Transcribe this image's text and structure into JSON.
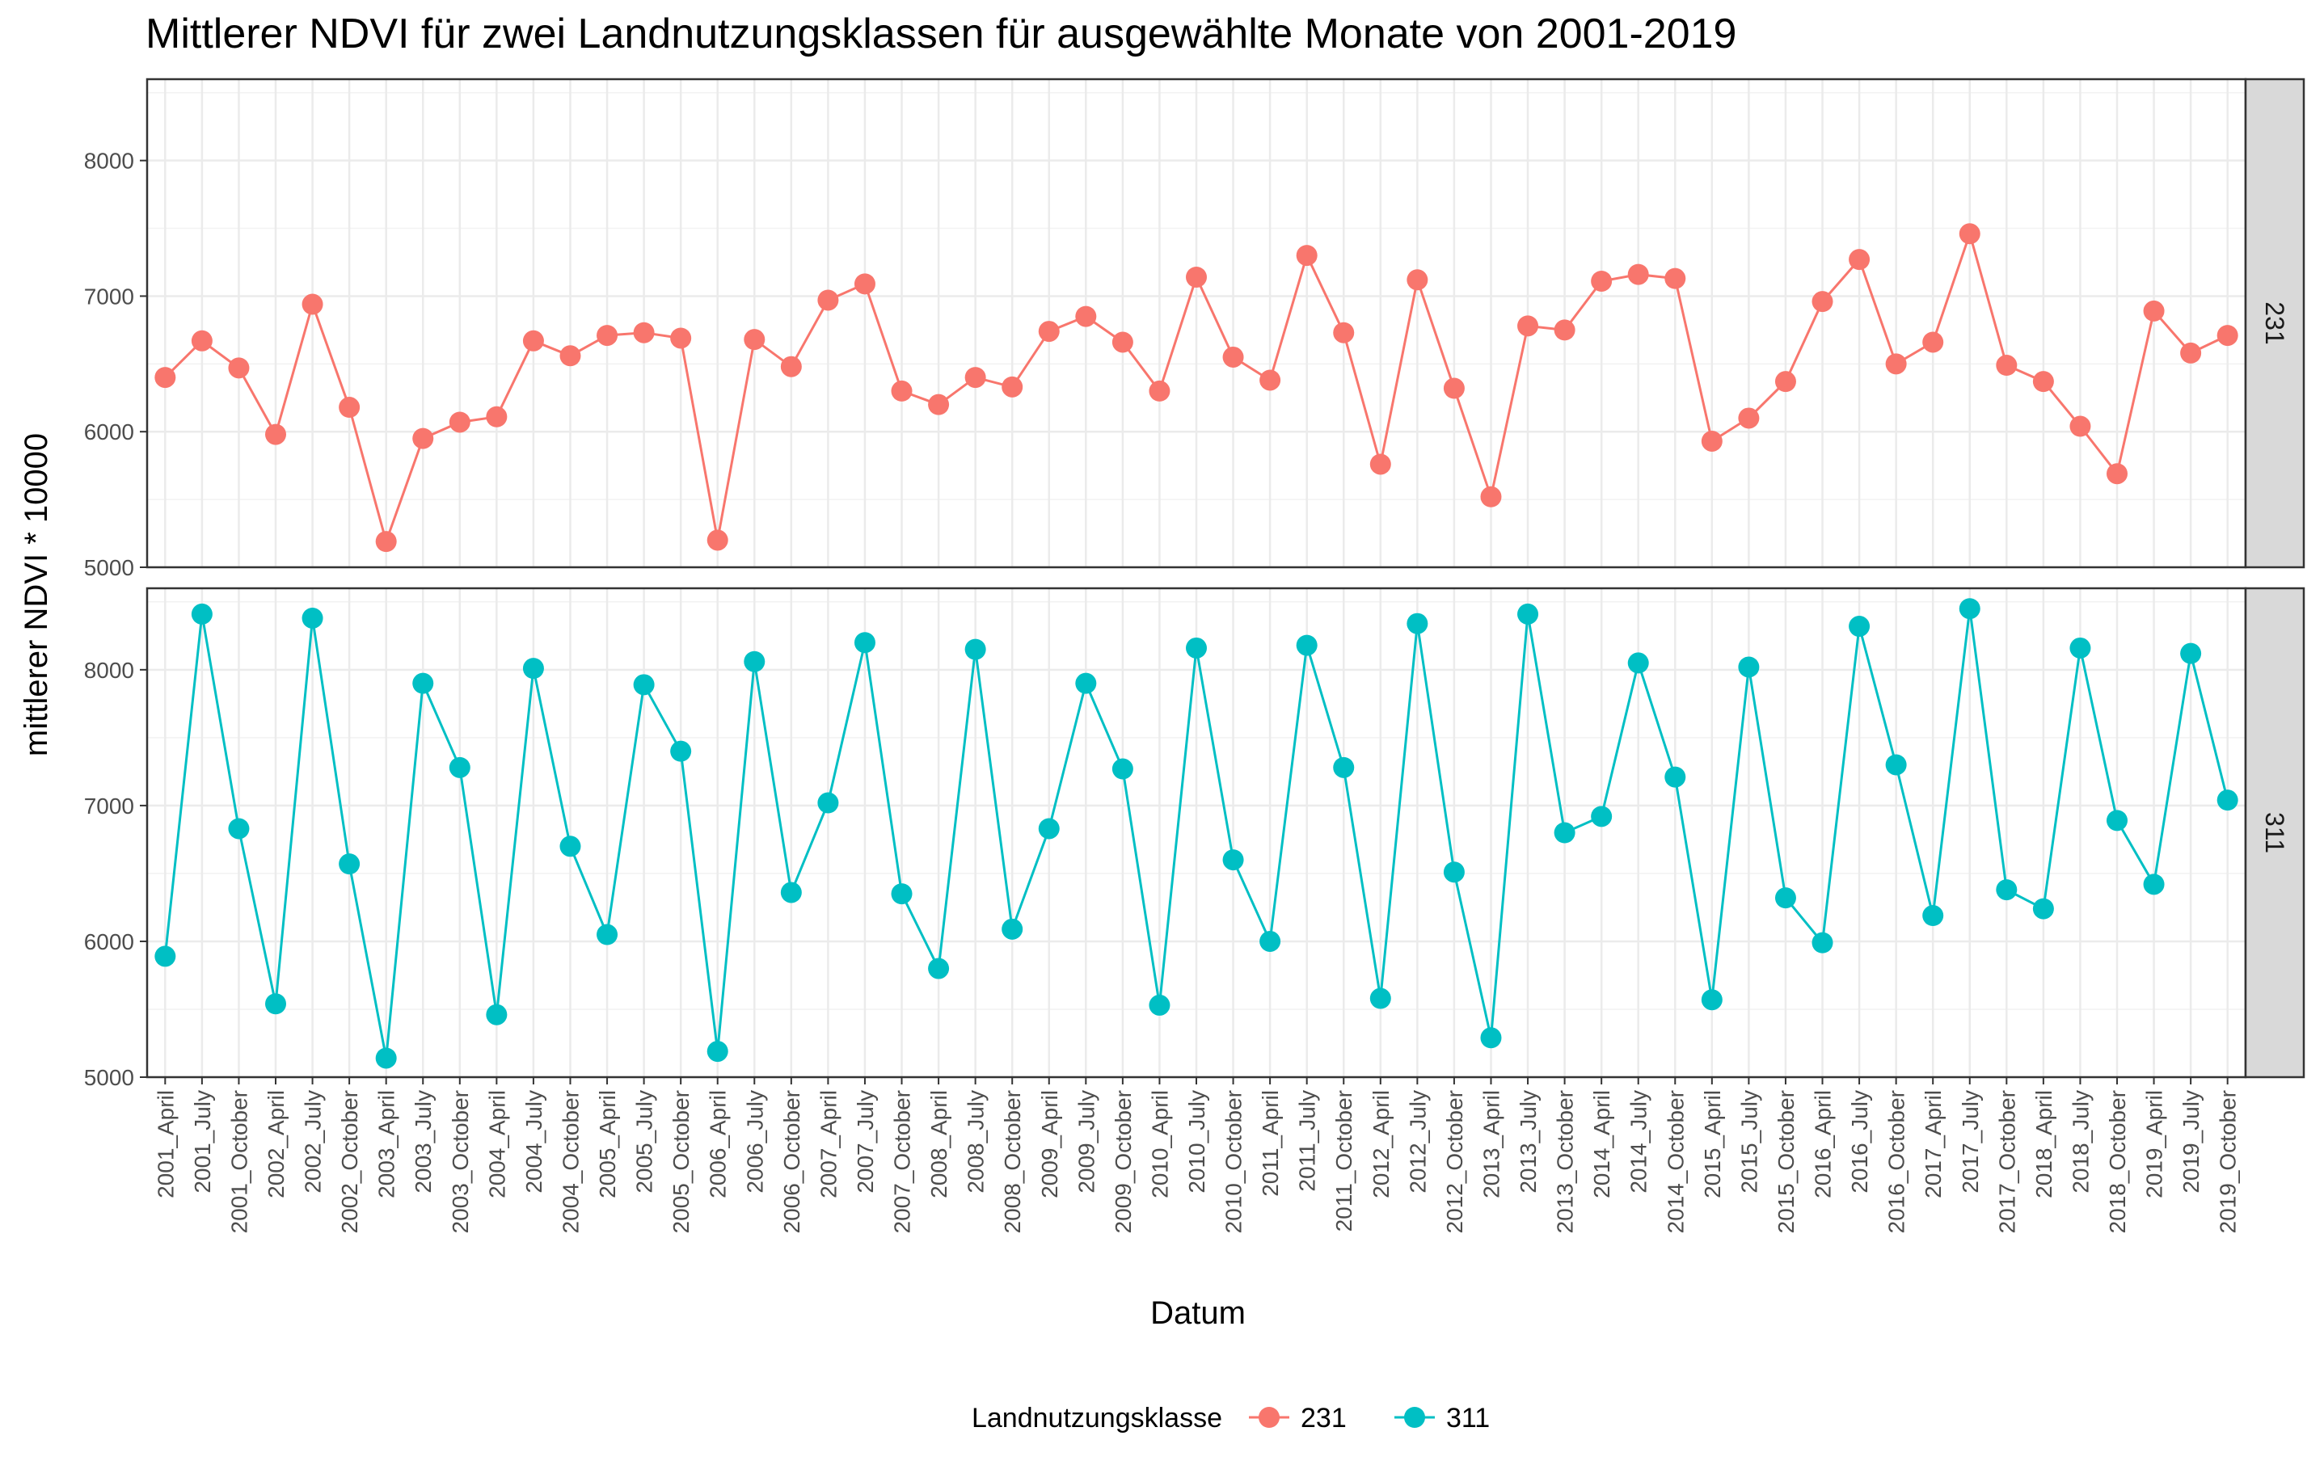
{
  "chart_data": {
    "type": "line",
    "title": "Mittlerer NDVI für zwei Landnutzungsklassen für ausgewählte Monate von 2001-2019",
    "xlabel": "Datum",
    "ylabel": "mittlerer NDVI * 10000",
    "legend": {
      "title": "Landnutzungsklasse",
      "position": "bottom"
    },
    "grid": true,
    "categories": [
      "2001_April",
      "2001_July",
      "2001_October",
      "2002_April",
      "2002_July",
      "2002_October",
      "2003_April",
      "2003_July",
      "2003_October",
      "2004_April",
      "2004_July",
      "2004_October",
      "2005_April",
      "2005_July",
      "2005_October",
      "2006_April",
      "2006_July",
      "2006_October",
      "2007_April",
      "2007_July",
      "2007_October",
      "2008_April",
      "2008_July",
      "2008_October",
      "2009_April",
      "2009_July",
      "2009_October",
      "2010_April",
      "2010_July",
      "2010_October",
      "2011_April",
      "2011_July",
      "2011_October",
      "2012_April",
      "2012_July",
      "2012_October",
      "2013_April",
      "2013_July",
      "2013_October",
      "2014_April",
      "2014_July",
      "2014_October",
      "2015_April",
      "2015_July",
      "2015_October",
      "2016_April",
      "2016_July",
      "2016_October",
      "2017_April",
      "2017_July",
      "2017_October",
      "2018_April",
      "2018_July",
      "2018_October",
      "2019_April",
      "2019_July",
      "2019_October"
    ],
    "panels": [
      {
        "strip": "231",
        "ylim": [
          5000,
          8600
        ],
        "yticks": [
          "5000",
          "6000",
          "7000",
          "8000"
        ],
        "yticks_values": [
          5000,
          6000,
          7000,
          8000
        ]
      },
      {
        "strip": "311",
        "ylim": [
          5000,
          8600
        ],
        "yticks": [
          "5000",
          "6000",
          "7000",
          "8000"
        ],
        "yticks_values": [
          5000,
          6000,
          7000,
          8000
        ]
      }
    ],
    "series": [
      {
        "name": "231",
        "color": "#F8766D",
        "values": [
          6400,
          6670,
          6470,
          5980,
          6940,
          6180,
          5190,
          5950,
          6070,
          6110,
          6670,
          6560,
          6710,
          6730,
          6690,
          5200,
          6680,
          6480,
          6970,
          7090,
          6300,
          6200,
          6400,
          6330,
          6740,
          6850,
          6660,
          6300,
          7140,
          6550,
          6380,
          7300,
          6730,
          5760,
          7120,
          6320,
          5520,
          6780,
          6750,
          7110,
          7160,
          7130,
          5930,
          6100,
          6370,
          6960,
          7270,
          6500,
          6660,
          7460,
          6490,
          6370,
          6040,
          5690,
          6890,
          6580,
          6710
        ]
      },
      {
        "name": "311",
        "color": "#00BFC4",
        "values": [
          5890,
          8410,
          6830,
          5540,
          8380,
          6570,
          5140,
          7900,
          7280,
          5460,
          8010,
          6700,
          6050,
          7890,
          7400,
          5190,
          8060,
          6360,
          7020,
          8200,
          6350,
          5800,
          8150,
          6090,
          6830,
          7900,
          7270,
          5530,
          8160,
          6600,
          6000,
          8180,
          7280,
          5580,
          8340,
          6510,
          5290,
          8410,
          6800,
          6920,
          8050,
          7210,
          5570,
          8020,
          6320,
          5990,
          8320,
          7300,
          6190,
          8450,
          6380,
          6240,
          8160,
          6890,
          6420,
          8120,
          7040
        ]
      }
    ]
  }
}
